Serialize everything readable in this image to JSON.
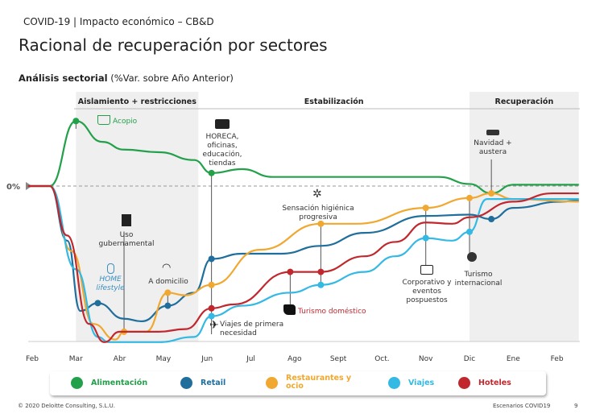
{
  "header": {
    "supertitle": "COVID-19 | Impacto económico – CB&D",
    "title": "Racional de recuperación por sectores",
    "subtitle_bold": "Análisis sectorial",
    "subtitle_rest": " (%Var. sobre Año Anterior)"
  },
  "footer": {
    "copyright": "© 2020 Deloitte Consulting, S.L.U.",
    "section": "Escenarios COVID19",
    "page": "9"
  },
  "chart_data": {
    "type": "line",
    "ylabel": "0%",
    "xlim": [
      -0.1,
      12.5
    ],
    "ylim": [
      -60,
      30
    ],
    "x_ticks": [
      "Feb",
      "Mar",
      "Abr",
      "May",
      "Jun",
      "Jul",
      "Ago",
      "Sept",
      "Oct.",
      "Nov",
      "Dic",
      "Ene",
      "Feb"
    ],
    "phases": [
      {
        "label": "Aislamiento + restricciones",
        "range": [
          1,
          3.8
        ],
        "shaded": true
      },
      {
        "label": "Estabilización",
        "range": [
          3.8,
          10
        ],
        "shaded": false
      },
      {
        "label": "Recuperación",
        "range": [
          10,
          12.5
        ],
        "shaded": true
      }
    ],
    "series": [
      {
        "name": "Alimentación",
        "color": "#23a04a",
        "points": [
          [
            -0.1,
            0
          ],
          [
            0.4,
            0
          ],
          [
            1,
            25
          ],
          [
            1.6,
            17
          ],
          [
            2.1,
            14
          ],
          [
            2.9,
            13
          ],
          [
            3.7,
            10
          ],
          [
            4.1,
            5
          ],
          [
            4.8,
            6.5
          ],
          [
            5.5,
            3.5
          ],
          [
            7.5,
            3.5
          ],
          [
            9.3,
            3.5
          ],
          [
            10,
            0.8
          ],
          [
            10.5,
            -2.8
          ],
          [
            11,
            0.5
          ],
          [
            12.5,
            0.5
          ]
        ],
        "markers": [
          [
            1,
            25
          ],
          [
            4.1,
            5
          ]
        ]
      },
      {
        "name": "Retail",
        "color": "#1f6e9c",
        "points": [
          [
            -0.1,
            0
          ],
          [
            0.4,
            0
          ],
          [
            0.8,
            -21
          ],
          [
            1.1,
            -48
          ],
          [
            1.5,
            -45
          ],
          [
            2.1,
            -51
          ],
          [
            2.5,
            -52
          ],
          [
            3.1,
            -46
          ],
          [
            3.7,
            -41
          ],
          [
            4.1,
            -28
          ],
          [
            4.8,
            -26
          ],
          [
            5.7,
            -26
          ],
          [
            6.6,
            -23
          ],
          [
            7.6,
            -18
          ],
          [
            9,
            -11.5
          ],
          [
            10,
            -11
          ],
          [
            10.5,
            -12.7
          ],
          [
            11,
            -8.4
          ],
          [
            12.1,
            -6
          ],
          [
            12.5,
            -5.5
          ]
        ],
        "markers": [
          [
            1.5,
            -45
          ],
          [
            3.1,
            -46
          ],
          [
            4.1,
            -28
          ],
          [
            10.5,
            -12.7
          ]
        ]
      },
      {
        "name": "Restaurantes y ocio",
        "color": "#f0a830",
        "points": [
          [
            -0.1,
            0
          ],
          [
            0.4,
            0
          ],
          [
            0.9,
            -25
          ],
          [
            1.4,
            -53
          ],
          [
            1.9,
            -59
          ],
          [
            2.1,
            -56
          ],
          [
            2.6,
            -56
          ],
          [
            3.1,
            -41
          ],
          [
            3.5,
            -42
          ],
          [
            4.1,
            -38
          ],
          [
            5.2,
            -24.5
          ],
          [
            6.6,
            -14.5
          ],
          [
            7.4,
            -14.5
          ],
          [
            9,
            -8.4
          ],
          [
            10,
            -4.6
          ],
          [
            10.5,
            -2.8
          ],
          [
            11,
            -5
          ],
          [
            12.5,
            -6
          ]
        ],
        "markers": [
          [
            2.1,
            -56
          ],
          [
            3.1,
            -41
          ],
          [
            4.1,
            -38
          ],
          [
            6.6,
            -14.5
          ],
          [
            9,
            -8.4
          ],
          [
            10,
            -4.6
          ],
          [
            10.5,
            -2.8
          ]
        ]
      },
      {
        "name": "Viajes",
        "color": "#33b9e3",
        "points": [
          [
            -0.1,
            0
          ],
          [
            0.4,
            0
          ],
          [
            1,
            -32
          ],
          [
            1.5,
            -58
          ],
          [
            1.75,
            -60
          ],
          [
            2.9,
            -60
          ],
          [
            3.7,
            -58
          ],
          [
            4.1,
            -50
          ],
          [
            4.8,
            -46
          ],
          [
            5.9,
            -41
          ],
          [
            6.6,
            -38
          ],
          [
            7.6,
            -33
          ],
          [
            8.3,
            -27
          ],
          [
            9,
            -20
          ],
          [
            9.6,
            -21
          ],
          [
            10,
            -17.6
          ],
          [
            10.4,
            -5
          ],
          [
            11,
            -5
          ],
          [
            12.5,
            -5
          ]
        ],
        "markers": [
          [
            4.1,
            -50
          ],
          [
            6.6,
            -38
          ],
          [
            9,
            -20
          ],
          [
            10,
            -17.6
          ]
        ]
      },
      {
        "name": "Hoteles",
        "color": "#c0282e",
        "points": [
          [
            -0.1,
            0
          ],
          [
            0.4,
            0
          ],
          [
            0.8,
            -19
          ],
          [
            1.3,
            -53
          ],
          [
            1.65,
            -60
          ],
          [
            2,
            -56
          ],
          [
            2.9,
            -56
          ],
          [
            3.5,
            -55
          ],
          [
            4.1,
            -47
          ],
          [
            4.6,
            -45.5
          ],
          [
            5.9,
            -33
          ],
          [
            6.6,
            -33
          ],
          [
            7.6,
            -27
          ],
          [
            8.3,
            -21.5
          ],
          [
            9,
            -14
          ],
          [
            9.6,
            -14.5
          ],
          [
            10,
            -12
          ],
          [
            11,
            -6
          ],
          [
            11.9,
            -2.8
          ],
          [
            12.5,
            -2.8
          ]
        ],
        "markers": [
          [
            4.1,
            -47
          ],
          [
            5.9,
            -33
          ],
          [
            6.6,
            -33
          ]
        ]
      }
    ],
    "annotations": {
      "acopio": "Acopio",
      "horeca": "HORECA, oficinas, educación, tiendas",
      "uso": "Uso gubernamental",
      "home": "HOME lifestyle",
      "domicilio": "A domicilio",
      "viajes": "Viajes de primera necesidad",
      "turismo_dom": "Turismo doméstico",
      "sensacion": "Sensación higiénica progresiva",
      "corporativo": "Corporativo y eventos pospuestos",
      "turismo_int": "Turismo internacional",
      "navidad": "Navidad + austera"
    },
    "legend": [
      "Alimentación",
      "Retail",
      "Restaurantes y ocio",
      "Viajes",
      "Hoteles"
    ],
    "legend_placement": "bottom"
  }
}
